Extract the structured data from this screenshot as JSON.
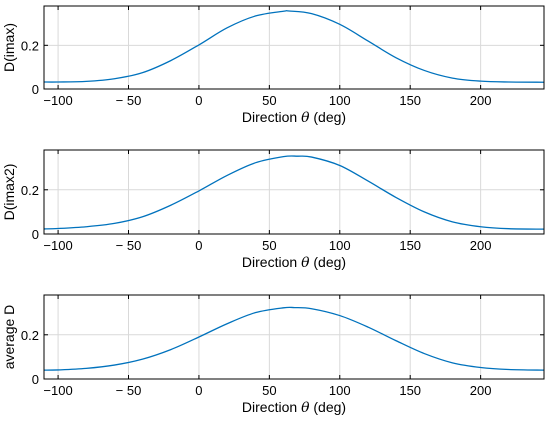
{
  "colors": {
    "line": "#0072BD",
    "grid": "#d9d9d9",
    "axes": "#000000",
    "background": "#ffffff"
  },
  "chart_data": [
    {
      "type": "line",
      "ylabel": "D(imax)",
      "xlabel": {
        "prefix": "Direction ",
        "symbol": "θ",
        "suffix": " (deg)"
      },
      "xlim": [
        -110,
        245
      ],
      "ylim": [
        0,
        0.38
      ],
      "xticks": [
        -100,
        -50,
        0,
        50,
        100,
        150,
        200
      ],
      "xtick_labels": [
        "−100",
        "− 50",
        "0",
        "50",
        "100",
        "150",
        "200"
      ],
      "yticks": [
        0,
        0.2
      ],
      "ytick_labels": [
        "0",
        "0.2"
      ],
      "grid": true,
      "x": [
        -110,
        -100,
        -80,
        -60,
        -40,
        -20,
        0,
        20,
        40,
        60,
        64,
        80,
        100,
        120,
        140,
        160,
        180,
        200,
        220,
        245
      ],
      "y": [
        0.032,
        0.032,
        0.035,
        0.047,
        0.075,
        0.13,
        0.202,
        0.28,
        0.334,
        0.356,
        0.357,
        0.345,
        0.296,
        0.22,
        0.143,
        0.085,
        0.05,
        0.036,
        0.032,
        0.031
      ]
    },
    {
      "type": "line",
      "ylabel": "D(imax2)",
      "xlabel": {
        "prefix": "Direction ",
        "symbol": "θ",
        "suffix": " (deg)"
      },
      "xlim": [
        -110,
        245
      ],
      "ylim": [
        0,
        0.38
      ],
      "xticks": [
        -100,
        -50,
        0,
        50,
        100,
        150,
        200
      ],
      "xtick_labels": [
        "−100",
        "− 50",
        "0",
        "50",
        "100",
        "150",
        "200"
      ],
      "yticks": [
        0,
        0.2
      ],
      "ytick_labels": [
        "0",
        "0.2"
      ],
      "grid": true,
      "x": [
        -110,
        -100,
        -80,
        -60,
        -40,
        -20,
        0,
        20,
        40,
        60,
        70,
        80,
        100,
        120,
        140,
        160,
        180,
        200,
        220,
        245
      ],
      "y": [
        0.023,
        0.025,
        0.033,
        0.048,
        0.078,
        0.13,
        0.195,
        0.265,
        0.322,
        0.35,
        0.352,
        0.348,
        0.31,
        0.24,
        0.165,
        0.1,
        0.055,
        0.033,
        0.024,
        0.022
      ]
    },
    {
      "type": "line",
      "ylabel": "average D",
      "xlabel": {
        "prefix": "Direction ",
        "symbol": "θ",
        "suffix": " (deg)"
      },
      "xlim": [
        -110,
        245
      ],
      "ylim": [
        0,
        0.38
      ],
      "xticks": [
        -100,
        -50,
        0,
        50,
        100,
        150,
        200
      ],
      "xtick_labels": [
        "−100",
        "− 50",
        "0",
        "50",
        "100",
        "150",
        "200"
      ],
      "yticks": [
        0,
        0.2
      ],
      "ytick_labels": [
        "0",
        "0.2"
      ],
      "grid": true,
      "x": [
        -110,
        -100,
        -80,
        -60,
        -40,
        -20,
        0,
        20,
        40,
        60,
        68,
        80,
        100,
        120,
        140,
        160,
        180,
        200,
        220,
        245
      ],
      "y": [
        0.04,
        0.041,
        0.048,
        0.063,
        0.09,
        0.133,
        0.19,
        0.25,
        0.3,
        0.322,
        0.323,
        0.318,
        0.287,
        0.235,
        0.173,
        0.115,
        0.073,
        0.052,
        0.043,
        0.04
      ]
    }
  ]
}
